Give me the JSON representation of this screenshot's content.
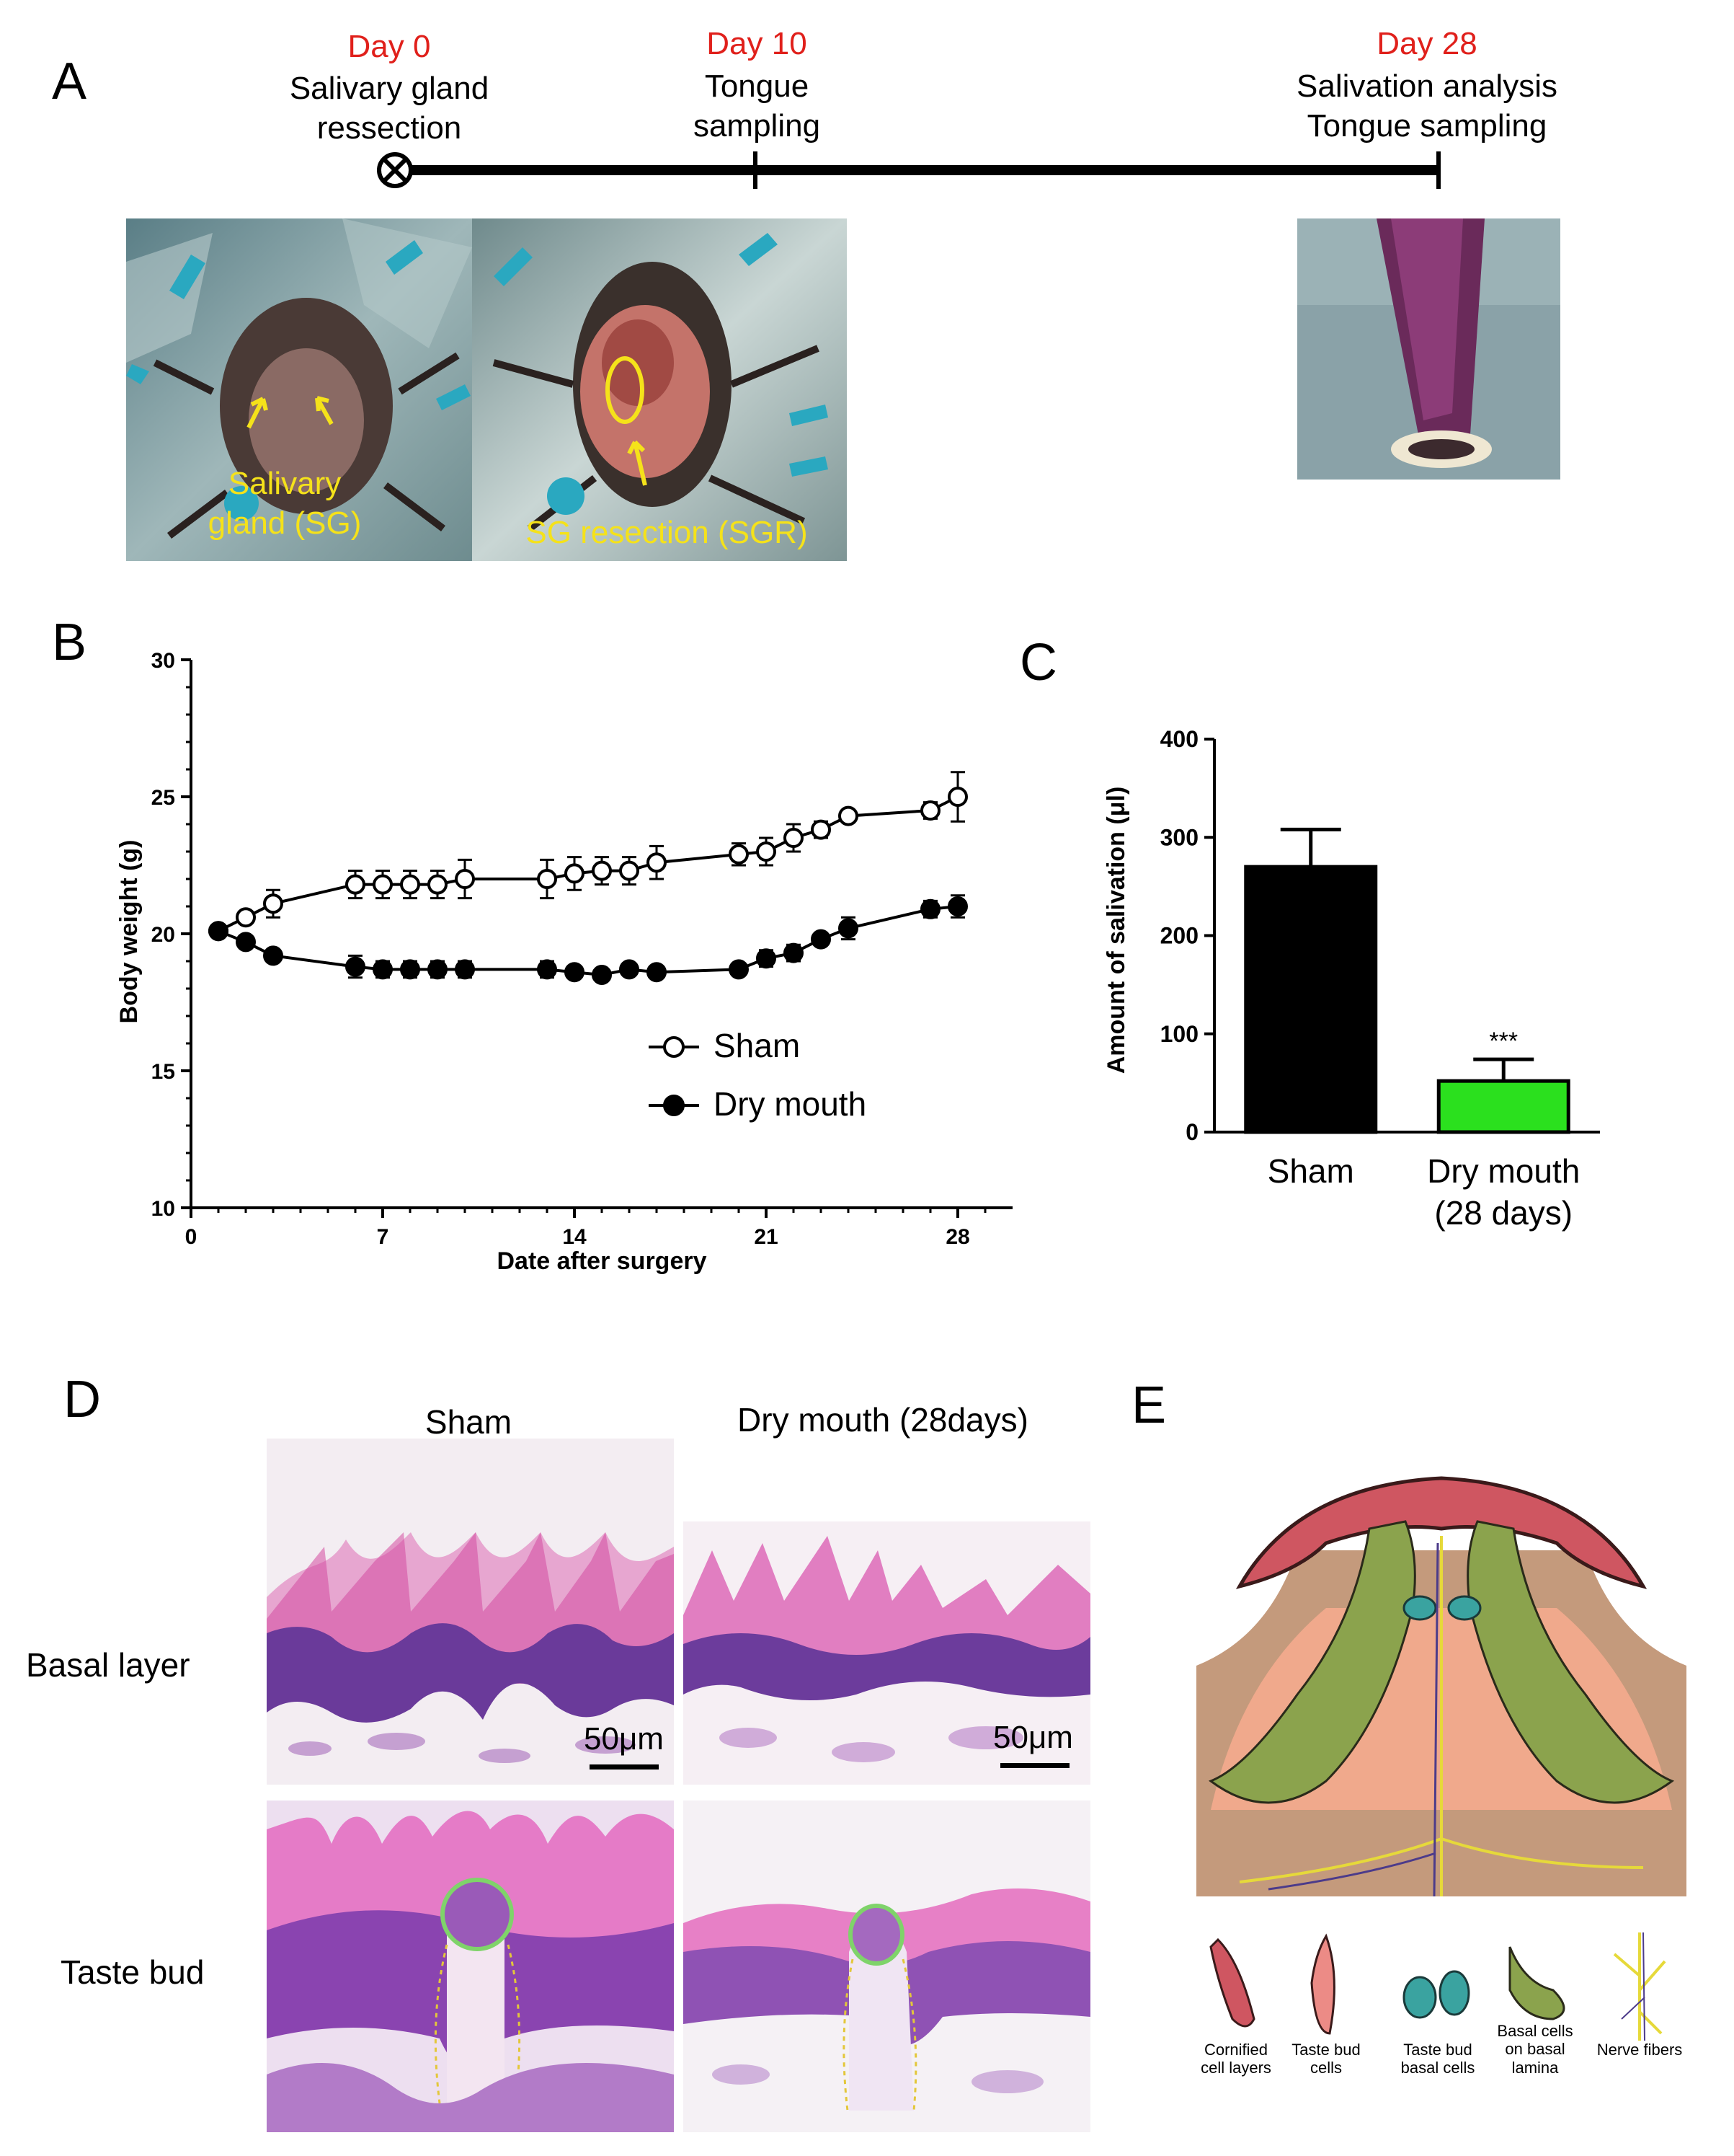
{
  "panels": {
    "a": "A",
    "b": "B",
    "c": "C",
    "d": "D",
    "e": "E"
  },
  "timeline": {
    "events": [
      {
        "day": "Day 0",
        "desc": [
          "Salivary gland",
          "ressection"
        ]
      },
      {
        "day": "Day 10",
        "desc": [
          "Tongue",
          "sampling"
        ]
      },
      {
        "day": "Day 28",
        "desc": [
          "Salivation analysis",
          "Tongue sampling"
        ]
      }
    ],
    "photo_labels": {
      "sg": [
        "Salivary",
        "gland (SG)"
      ],
      "sgr": "SG resection (SGR)"
    }
  },
  "chart_data": [
    {
      "type": "line",
      "xlabel": "Date after surgery",
      "ylabel": "Body weight (g)",
      "xlim": [
        0,
        30
      ],
      "xticks": [
        0,
        7,
        14,
        21,
        28
      ],
      "ylim": [
        10,
        30
      ],
      "yticks": [
        10,
        15,
        20,
        25,
        30
      ],
      "legend_position": "inside-lower-right",
      "series": [
        {
          "name": "Sham",
          "marker": "open-circle",
          "x": [
            1,
            2,
            3,
            6,
            7,
            8,
            9,
            10,
            13,
            14,
            15,
            16,
            17,
            20,
            21,
            22,
            23,
            24,
            27,
            28
          ],
          "y": [
            20.1,
            20.6,
            21.1,
            21.8,
            21.8,
            21.8,
            21.8,
            22.0,
            22.0,
            22.2,
            22.3,
            22.3,
            22.6,
            22.9,
            23.0,
            23.5,
            23.8,
            24.3,
            24.5,
            25.0
          ],
          "err": [
            0.2,
            0.2,
            0.5,
            0.5,
            0.5,
            0.5,
            0.5,
            0.7,
            0.7,
            0.6,
            0.5,
            0.5,
            0.6,
            0.4,
            0.5,
            0.5,
            0.3,
            0.2,
            0.3,
            0.9
          ]
        },
        {
          "name": "Dry mouth",
          "marker": "filled-circle",
          "x": [
            1,
            2,
            3,
            6,
            7,
            8,
            9,
            10,
            13,
            14,
            15,
            16,
            17,
            20,
            21,
            22,
            23,
            24,
            27,
            28
          ],
          "y": [
            20.1,
            19.7,
            19.2,
            18.8,
            18.7,
            18.7,
            18.7,
            18.7,
            18.7,
            18.6,
            18.5,
            18.7,
            18.6,
            18.7,
            19.1,
            19.3,
            19.8,
            20.2,
            20.9,
            21.0
          ],
          "err": [
            0.2,
            0.2,
            0.2,
            0.4,
            0.3,
            0.3,
            0.3,
            0.3,
            0.3,
            0.2,
            0.2,
            0.2,
            0.2,
            0.2,
            0.3,
            0.3,
            0.2,
            0.4,
            0.3,
            0.4
          ]
        }
      ]
    },
    {
      "type": "bar",
      "ylabel": "Amount of salivation  (μl)",
      "ylim": [
        0,
        400
      ],
      "yticks": [
        0,
        100,
        200,
        300,
        400
      ],
      "categories": [
        [
          "Sham"
        ],
        [
          "Dry mouth",
          "(28 days)"
        ]
      ],
      "values": [
        270,
        52
      ],
      "errors": [
        38,
        22
      ],
      "colors": [
        "#000000",
        "#2be01e"
      ],
      "annotations": [
        "",
        "***"
      ]
    }
  ],
  "histology": {
    "col_headers": [
      "Sham",
      "Dry mouth  (28days)"
    ],
    "row_labels": [
      "Basal layer",
      "Taste bud"
    ],
    "scale_label": "50μm"
  },
  "diagram_legend": [
    {
      "icon": "cornified-cell-icon",
      "label": [
        "Cornified",
        "cell layers"
      ]
    },
    {
      "icon": "taste-bud-cell-icon",
      "label": [
        "Taste bud",
        "cells"
      ]
    },
    {
      "icon": "basal-cell-icon",
      "label": [
        "Taste bud",
        "basal cells"
      ]
    },
    {
      "icon": "basal-lamina-cell-icon",
      "label": [
        "Basal cells",
        "on basal",
        "lamina"
      ]
    },
    {
      "icon": "nerve-fiber-icon",
      "label": [
        "Nerve fibers"
      ]
    }
  ]
}
